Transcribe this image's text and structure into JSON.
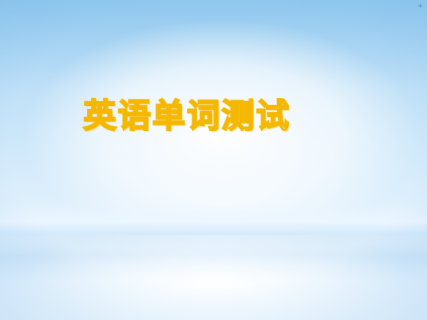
{
  "slide": {
    "title": "英语单词测试",
    "corner_mark": "*"
  },
  "colors": {
    "title_outline": "#f5b800",
    "title_fill": "#ffffff",
    "background_top": "#8fc7ee",
    "background_bottom": "#f4fbff"
  }
}
